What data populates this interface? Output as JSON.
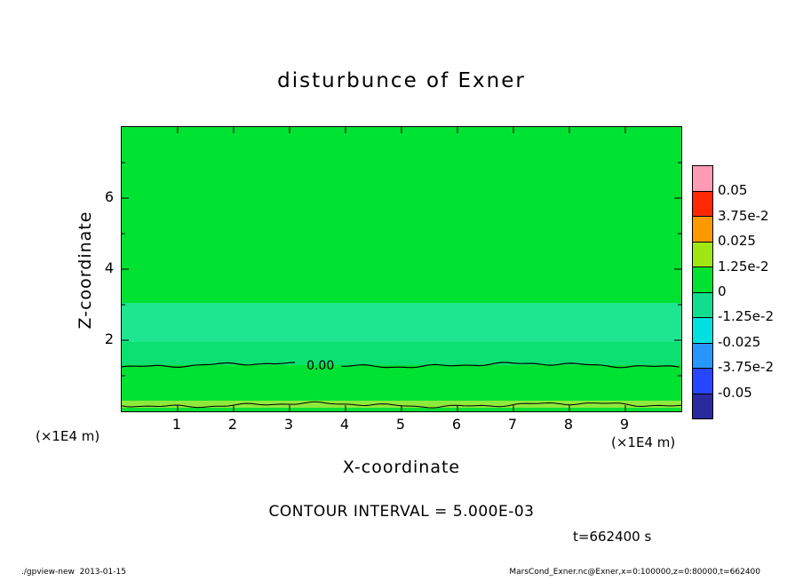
{
  "chart_data": {
    "type": "heatmap",
    "title": "disturbunce of Exner",
    "xlabel": "X-coordinate",
    "ylabel": "Z-coordinate",
    "x_unit_label": "(×1E4 m)",
    "z_unit_label": "(×1E4 m)",
    "xlim": [
      0,
      10
    ],
    "zlim": [
      0,
      8
    ],
    "x_ticks": [
      1,
      2,
      3,
      4,
      5,
      6,
      7,
      8,
      9
    ],
    "z_major_ticks": [
      2,
      4,
      6
    ],
    "z_minor_ticks": [
      1,
      3,
      5,
      7
    ],
    "contour_interval_label": "CONTOUR INTERVAL = 5.000E-03",
    "time_label": "t=662400 s",
    "field_bands": [
      {
        "z_from": 3.05,
        "z_to": 8.0,
        "color": "#00E232"
      },
      {
        "z_from": 1.95,
        "z_to": 3.05,
        "color": "#1EE590"
      },
      {
        "z_from": 1.3,
        "z_to": 1.95,
        "color": "#0CE070"
      },
      {
        "z_from": 0.3,
        "z_to": 1.3,
        "color": "#00E232"
      },
      {
        "z_from": 0.1,
        "z_to": 0.3,
        "color": "#8FE83C"
      },
      {
        "z_from": 0.0,
        "z_to": 0.1,
        "color": "#00E232"
      }
    ],
    "contours": [
      {
        "z": 1.3,
        "label": "0.00",
        "label_x": 3.55
      },
      {
        "z": 0.18,
        "label": ""
      }
    ],
    "colorbar": {
      "labels": [
        "0.05",
        "3.75e-2",
        "0.025",
        "1.25e-2",
        "0",
        "-1.25e-2",
        "-0.025",
        "-3.75e-2",
        "-0.05"
      ],
      "colors": [
        "#FF9BB4",
        "#FF2800",
        "#FF9900",
        "#A0E614",
        "#00E232",
        "#0FDE8E",
        "#00E0E0",
        "#2896FF",
        "#2846FF",
        "#2A2A9E"
      ]
    }
  },
  "footer": {
    "left": "./gpview-new  2013-01-15",
    "right": "MarsCond_Exner.nc@Exner,x=0:100000,z=0:80000,t=662400"
  }
}
